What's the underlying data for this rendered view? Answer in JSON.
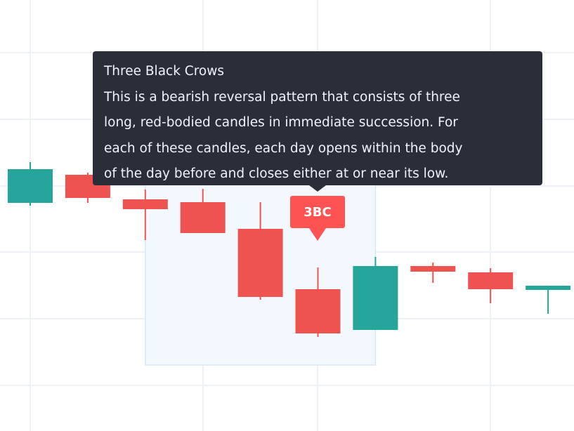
{
  "chart_data": {
    "type": "candlestick",
    "grid": true,
    "colors": {
      "up": "#26a69a",
      "down": "#ef5350",
      "grid": "#eef1f6",
      "highlight_fill": "#f2f8fd",
      "highlight_border": "#d6e8f7"
    },
    "candles": [
      {
        "open": 32.5,
        "high": 38.3,
        "low": 32.1,
        "close": 37.3
      },
      {
        "open": 36.5,
        "high": 36.8,
        "low": 32.5,
        "close": 33.2
      },
      {
        "open": 33.0,
        "high": 34.4,
        "low": 27.2,
        "close": 31.6
      },
      {
        "open": 32.6,
        "high": 34.5,
        "low": 28.2,
        "close": 28.2
      },
      {
        "open": 28.8,
        "high": 32.6,
        "low": 18.7,
        "close": 19.1
      },
      {
        "open": 20.2,
        "high": 23.3,
        "low": 13.4,
        "close": 13.9
      },
      {
        "open": 14.4,
        "high": 24.8,
        "low": 14.4,
        "close": 23.5
      },
      {
        "open": 23.5,
        "high": 24.0,
        "low": 21.1,
        "close": 22.7
      },
      {
        "open": 22.6,
        "high": 23.2,
        "low": 18.2,
        "close": 20.2
      },
      {
        "open": 20.1,
        "high": 20.7,
        "low": 16.7,
        "close": 20.7
      }
    ],
    "highlight_range": {
      "from_index": 3,
      "to_index": 6
    },
    "pattern_marker": {
      "index": 5,
      "label": "3BC",
      "color": "#ff5252"
    }
  },
  "tooltip": {
    "title": "Three Black Crows",
    "lines": [
      "This is a bearish reversal pattern that consists of three",
      "long, red-bodied candles in immediate succession. For",
      "each of these candles, each day opens within the body",
      "of the day before and closes either at or near its low."
    ]
  }
}
